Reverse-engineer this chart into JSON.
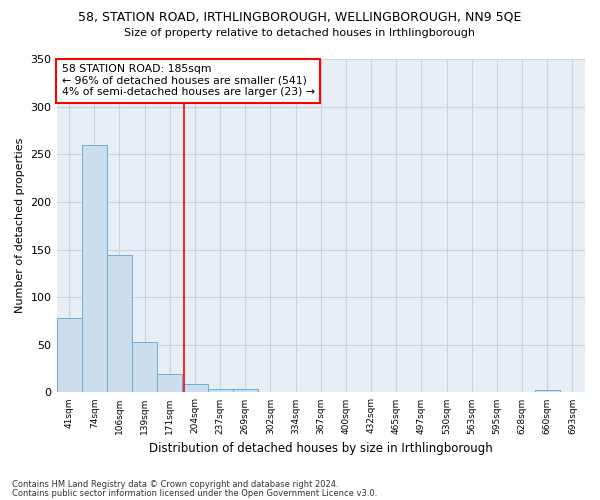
{
  "title1": "58, STATION ROAD, IRTHLINGBOROUGH, WELLINGBOROUGH, NN9 5QE",
  "title2": "Size of property relative to detached houses in Irthlingborough",
  "xlabel": "Distribution of detached houses by size in Irthlingborough",
  "ylabel": "Number of detached properties",
  "categories": [
    "41sqm",
    "74sqm",
    "106sqm",
    "139sqm",
    "171sqm",
    "204sqm",
    "237sqm",
    "269sqm",
    "302sqm",
    "334sqm",
    "367sqm",
    "400sqm",
    "432sqm",
    "465sqm",
    "497sqm",
    "530sqm",
    "563sqm",
    "595sqm",
    "628sqm",
    "660sqm",
    "693sqm"
  ],
  "values": [
    78,
    260,
    144,
    53,
    19,
    9,
    4,
    4,
    0,
    0,
    0,
    0,
    0,
    0,
    0,
    0,
    0,
    0,
    0,
    3,
    0
  ],
  "bar_color": "#ccdded",
  "bar_edge_color": "#6aafd4",
  "red_line_x": 4.58,
  "annotation_title": "58 STATION ROAD: 185sqm",
  "annotation_line1": "← 96% of detached houses are smaller (541)",
  "annotation_line2": "4% of semi-detached houses are larger (23) →",
  "footnote1": "Contains HM Land Registry data © Crown copyright and database right 2024.",
  "footnote2": "Contains public sector information licensed under the Open Government Licence v3.0.",
  "ylim": [
    0,
    350
  ],
  "yticks": [
    0,
    50,
    100,
    150,
    200,
    250,
    300,
    350
  ],
  "background_color": "#ffffff",
  "plot_bg_color": "#e8eef5",
  "grid_color": "#c8d4e0"
}
